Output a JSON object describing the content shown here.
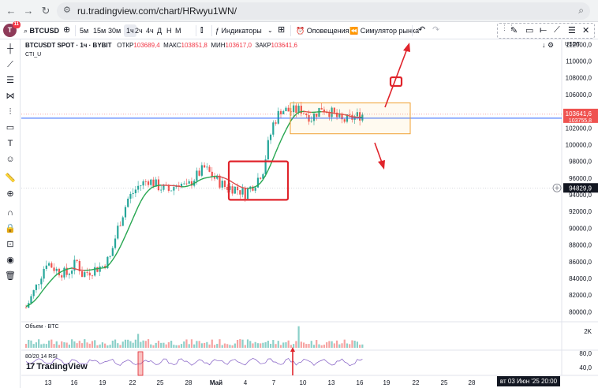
{
  "browser": {
    "url": "ru.tradingview.com/chart/HRwyu1WN/"
  },
  "toolbar": {
    "avatar_letter": "T",
    "avatar_badge": "11",
    "symbol": "BTCUSD",
    "timeframes": [
      "5м",
      "15м",
      "30м",
      "1ч",
      "2ч",
      "4ч",
      "Д",
      "Н",
      "М"
    ],
    "active_timeframe": "1ч",
    "indicators_label": "Индикаторы",
    "alerts_label": "Оповещения",
    "replay_label": "Симулятор рынка"
  },
  "legend": {
    "title": "BTCUSDT SPOT · 1ч · BYBIT",
    "open_label": "ОТКР",
    "open": "103689,4",
    "high_label": "МАКС",
    "high": "103851,8",
    "low_label": "МИН",
    "low": "103617,0",
    "close_label": "ЗАКР",
    "close": "103641,6",
    "indicator": "CTI_U"
  },
  "panes": {
    "volume_label": "Объем · BTC",
    "rsi_label": "80/20 14 RSI",
    "currency": "USDT"
  },
  "branding": {
    "logo_text": "TradingView"
  },
  "time_readout": "вт 03 Июн '25   20:00",
  "colors": {
    "bull": "#26a69a",
    "bear": "#ef5350",
    "smooth_line_up": "#26a650",
    "smooth_line_down": "#d94b4b",
    "annotation": "#e0242b",
    "range_box": "#f0a030",
    "price_line": "#2962ff",
    "rsi_line": "#7e57c2"
  },
  "chart_data": {
    "type": "candlestick",
    "y_ticks": [
      112000,
      110000,
      108000,
      106000,
      104000,
      102000,
      100000,
      98000,
      96000,
      94000,
      92000,
      90000,
      88000,
      86000,
      84000,
      82000,
      80000
    ],
    "y_tick_labels": [
      "112000,0",
      "110000,0",
      "108000,0",
      "106000,0",
      "104000,0",
      "102000,0",
      "100000,0",
      "98000,0",
      "96000,0",
      "94000,0",
      "92000,0",
      "90000,0",
      "88000,0",
      "86000,0",
      "84000,0",
      "82000,0",
      "80000,0"
    ],
    "ylim": [
      79000,
      112500
    ],
    "x_tick_labels": [
      "13",
      "16",
      "19",
      "22",
      "25",
      "28",
      "Май",
      "4",
      "7",
      "10",
      "13",
      "16",
      "19",
      "22",
      "25",
      "28"
    ],
    "price_path": [
      [
        0,
        80500
      ],
      [
        4,
        83000
      ],
      [
        8,
        86000
      ],
      [
        12,
        85000
      ],
      [
        16,
        84500
      ],
      [
        20,
        86000
      ],
      [
        22,
        84500
      ],
      [
        26,
        85000
      ],
      [
        30,
        85500
      ],
      [
        33,
        86500
      ],
      [
        36,
        90000
      ],
      [
        40,
        93500
      ],
      [
        44,
        95000
      ],
      [
        48,
        95800
      ],
      [
        52,
        95000
      ],
      [
        56,
        94500
      ],
      [
        60,
        95500
      ],
      [
        63,
        94800
      ],
      [
        66,
        96000
      ],
      [
        70,
        97200
      ],
      [
        74,
        96000
      ],
      [
        78,
        95000
      ],
      [
        82,
        94800
      ],
      [
        86,
        94200
      ],
      [
        90,
        95500
      ],
      [
        93,
        97000
      ],
      [
        95,
        100000
      ],
      [
        97,
        102500
      ],
      [
        100,
        104200
      ],
      [
        104,
        104000
      ],
      [
        108,
        104200
      ],
      [
        112,
        103200
      ],
      [
        116,
        104500
      ],
      [
        120,
        103800
      ],
      [
        124,
        102800
      ],
      [
        128,
        103200
      ],
      [
        132,
        103641
      ]
    ],
    "last_price": "103641,6",
    "last_price_sub": "103755,8",
    "crosshair_price": "94829,9",
    "range_box_price": [
      101300,
      105000
    ],
    "highlight_box_price": [
      93400,
      98000
    ],
    "volume_axis_label": "2K",
    "rsi_axis_labels": [
      "80,0",
      "40,0"
    ]
  }
}
